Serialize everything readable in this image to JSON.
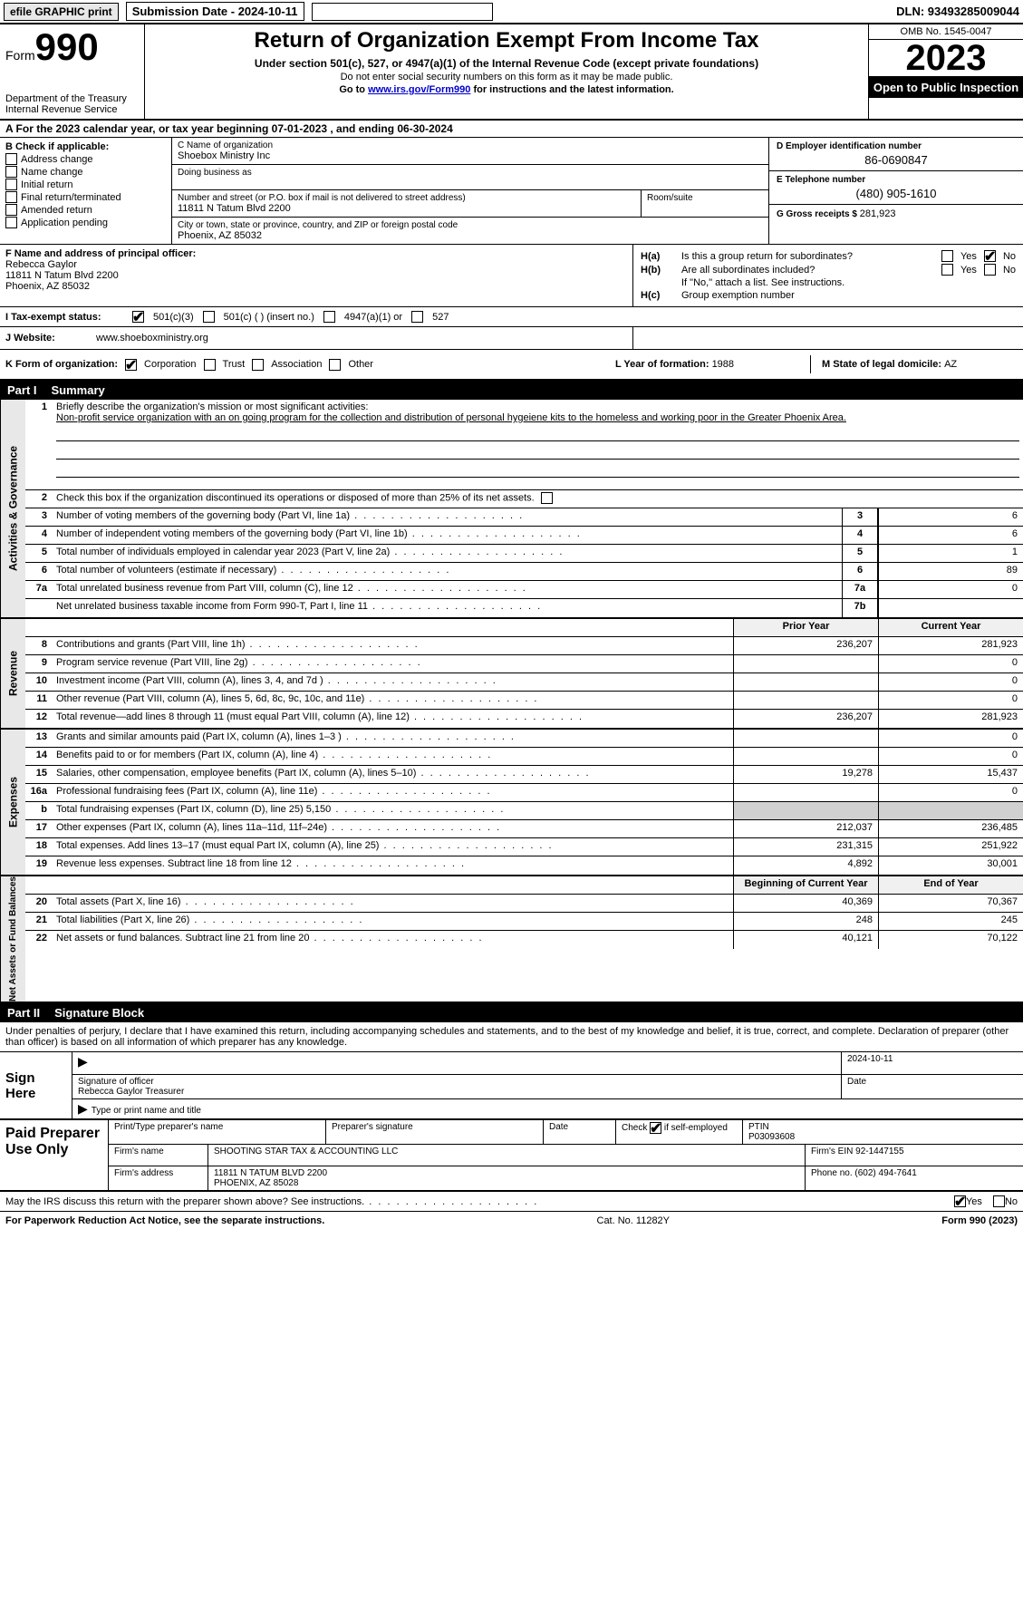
{
  "topbar": {
    "efile_btn": "efile GRAPHIC print",
    "submission_label": "Submission Date - 2024-10-11",
    "dln_label": "DLN: 93493285009044"
  },
  "header": {
    "form_label": "Form",
    "form_number": "990",
    "dept1": "Department of the Treasury",
    "dept2": "Internal Revenue Service",
    "title": "Return of Organization Exempt From Income Tax",
    "subtitle": "Under section 501(c), 527, or 4947(a)(1) of the Internal Revenue Code (except private foundations)",
    "note1": "Do not enter social security numbers on this form as it may be made public.",
    "note2_prefix": "Go to ",
    "note2_link": "www.irs.gov/Form990",
    "note2_suffix": " for instructions and the latest information.",
    "omb": "OMB No. 1545-0047",
    "year": "2023",
    "inspection": "Open to Public Inspection"
  },
  "period": {
    "text": "A For the 2023 calendar year, or tax year beginning 07-01-2023   , and ending 06-30-2024"
  },
  "section_b": {
    "title": "B Check if applicable:",
    "items": [
      "Address change",
      "Name change",
      "Initial return",
      "Final return/terminated",
      "Amended return",
      "Application pending"
    ]
  },
  "section_c": {
    "name_label": "C Name of organization",
    "name": "Shoebox Ministry Inc",
    "dba_label": "Doing business as",
    "street_label": "Number and street (or P.O. box if mail is not delivered to street address)",
    "room_label": "Room/suite",
    "street": "11811 N Tatum Blvd 2200",
    "city_label": "City or town, state or province, country, and ZIP or foreign postal code",
    "city": "Phoenix, AZ  85032"
  },
  "section_d": {
    "ein_label": "D Employer identification number",
    "ein": "86-0690847",
    "phone_label": "E Telephone number",
    "phone": "(480) 905-1610",
    "gross_label": "G Gross receipts $ ",
    "gross": "281,923"
  },
  "section_f": {
    "label": "F  Name and address of principal officer:",
    "name": "Rebecca Gaylor",
    "addr1": "11811 N Tatum Blvd 2200",
    "addr2": "Phoenix, AZ  85032"
  },
  "section_h": {
    "ha_label": "H(a)",
    "ha_text": "Is this a group return for subordinates?",
    "hb_label": "H(b)",
    "hb_text": "Are all subordinates included?",
    "hb_note": "If \"No,\" attach a list. See instructions.",
    "hc_label": "H(c)",
    "hc_text": "Group exemption number",
    "yes": "Yes",
    "no": "No"
  },
  "row_i": {
    "label": "I   Tax-exempt status:",
    "opt1": "501(c)(3)",
    "opt2": "501(c) (  ) (insert no.)",
    "opt3": "4947(a)(1) or",
    "opt4": "527"
  },
  "row_j": {
    "label": "J   Website:",
    "value": "www.shoeboxministry.org"
  },
  "row_k": {
    "label": "K Form of organization:",
    "opts": [
      "Corporation",
      "Trust",
      "Association",
      "Other"
    ],
    "l_label": "L Year of formation: ",
    "l_val": "1988",
    "m_label": "M State of legal domicile: ",
    "m_val": "AZ"
  },
  "part1": {
    "header": "Part I",
    "title": "Summary"
  },
  "gov": {
    "vert": "Activities & Governance",
    "r1_num": "1",
    "r1_text": "Briefly describe the organization's mission or most significant activities:",
    "r1_mission": "Non-profit service organization with an on going program for the collection and distribution of personal hygeiene kits to the homeless and working poor in the Greater Phoenix Area.",
    "r2_num": "2",
    "r2_text": "Check this box        if the organization discontinued its operations or disposed of more than 25% of its net assets.",
    "r3_num": "3",
    "r3_text": "Number of voting members of the governing body (Part VI, line 1a)",
    "r3_box": "3",
    "r3_val": "6",
    "r4_num": "4",
    "r4_text": "Number of independent voting members of the governing body (Part VI, line 1b)",
    "r4_box": "4",
    "r4_val": "6",
    "r5_num": "5",
    "r5_text": "Total number of individuals employed in calendar year 2023 (Part V, line 2a)",
    "r5_box": "5",
    "r5_val": "1",
    "r6_num": "6",
    "r6_text": "Total number of volunteers (estimate if necessary)",
    "r6_box": "6",
    "r6_val": "89",
    "r7a_num": "7a",
    "r7a_text": "Total unrelated business revenue from Part VIII, column (C), line 12",
    "r7a_box": "7a",
    "r7a_val": "0",
    "r7b_num": "",
    "r7b_text": "Net unrelated business taxable income from Form 990-T, Part I, line 11",
    "r7b_box": "7b",
    "r7b_val": ""
  },
  "rev": {
    "vert": "Revenue",
    "hdr_prior": "Prior Year",
    "hdr_curr": "Current Year",
    "rows": [
      {
        "n": "8",
        "t": "Contributions and grants (Part VIII, line 1h)",
        "p": "236,207",
        "c": "281,923"
      },
      {
        "n": "9",
        "t": "Program service revenue (Part VIII, line 2g)",
        "p": "",
        "c": "0"
      },
      {
        "n": "10",
        "t": "Investment income (Part VIII, column (A), lines 3, 4, and 7d )",
        "p": "",
        "c": "0"
      },
      {
        "n": "11",
        "t": "Other revenue (Part VIII, column (A), lines 5, 6d, 8c, 9c, 10c, and 11e)",
        "p": "",
        "c": "0"
      },
      {
        "n": "12",
        "t": "Total revenue—add lines 8 through 11 (must equal Part VIII, column (A), line 12)",
        "p": "236,207",
        "c": "281,923"
      }
    ]
  },
  "exp": {
    "vert": "Expenses",
    "rows": [
      {
        "n": "13",
        "t": "Grants and similar amounts paid (Part IX, column (A), lines 1–3 )",
        "p": "",
        "c": "0"
      },
      {
        "n": "14",
        "t": "Benefits paid to or for members (Part IX, column (A), line 4)",
        "p": "",
        "c": "0"
      },
      {
        "n": "15",
        "t": "Salaries, other compensation, employee benefits (Part IX, column (A), lines 5–10)",
        "p": "19,278",
        "c": "15,437"
      },
      {
        "n": "16a",
        "t": "Professional fundraising fees (Part IX, column (A), line 11e)",
        "p": "",
        "c": "0"
      },
      {
        "n": "b",
        "t": "Total fundraising expenses (Part IX, column (D), line 25) 5,150",
        "p": "grey",
        "c": "grey"
      },
      {
        "n": "17",
        "t": "Other expenses (Part IX, column (A), lines 11a–11d, 11f–24e)",
        "p": "212,037",
        "c": "236,485"
      },
      {
        "n": "18",
        "t": "Total expenses. Add lines 13–17 (must equal Part IX, column (A), line 25)",
        "p": "231,315",
        "c": "251,922"
      },
      {
        "n": "19",
        "t": "Revenue less expenses. Subtract line 18 from line 12",
        "p": "4,892",
        "c": "30,001"
      }
    ]
  },
  "net": {
    "vert": "Net Assets or Fund Balances",
    "hdr_beg": "Beginning of Current Year",
    "hdr_end": "End of Year",
    "rows": [
      {
        "n": "20",
        "t": "Total assets (Part X, line 16)",
        "p": "40,369",
        "c": "70,367"
      },
      {
        "n": "21",
        "t": "Total liabilities (Part X, line 26)",
        "p": "248",
        "c": "245"
      },
      {
        "n": "22",
        "t": "Net assets or fund balances. Subtract line 21 from line 20",
        "p": "40,121",
        "c": "70,122"
      }
    ]
  },
  "part2": {
    "header": "Part II",
    "title": "Signature Block"
  },
  "sig": {
    "penalty": "Under penalties of perjury, I declare that I have examined this return, including accompanying schedules and statements, and to the best of my knowledge and belief, it is true, correct, and complete. Declaration of preparer (other than officer) is based on all information of which preparer has any knowledge.",
    "sign_here": "Sign Here",
    "sig_label": "Signature of officer",
    "date_label": "Date",
    "date_val": "2024-10-11",
    "officer": "Rebecca Gaylor  Treasurer",
    "type_label": "Type or print name and title"
  },
  "prep": {
    "label": "Paid Preparer Use Only",
    "col1": "Print/Type preparer's name",
    "col2": "Preparer's signature",
    "col3": "Date",
    "col4_label": "Check       if self-employed",
    "col5_label": "PTIN",
    "ptin": "P03093608",
    "firm_name_label": "Firm's name",
    "firm_name": "SHOOTING STAR TAX & ACCOUNTING LLC",
    "firm_ein_label": "Firm's EIN",
    "firm_ein": "92-1447155",
    "firm_addr_label": "Firm's address",
    "firm_addr1": "11811 N TATUM BLVD 2200",
    "firm_addr2": "PHOENIX, AZ  85028",
    "phone_label": "Phone no.",
    "phone": "(602) 494-7641"
  },
  "discuss": {
    "text": "May the IRS discuss this return with the preparer shown above? See instructions.",
    "yes": "Yes",
    "no": "No"
  },
  "footer": {
    "left": "For Paperwork Reduction Act Notice, see the separate instructions.",
    "mid": "Cat. No. 11282Y",
    "right": "Form 990 (2023)"
  },
  "colors": {
    "black": "#000000",
    "white": "#ffffff",
    "grey_bg": "#d0d0d0",
    "header_grey": "#e8e8e8",
    "link": "#0000cc"
  }
}
